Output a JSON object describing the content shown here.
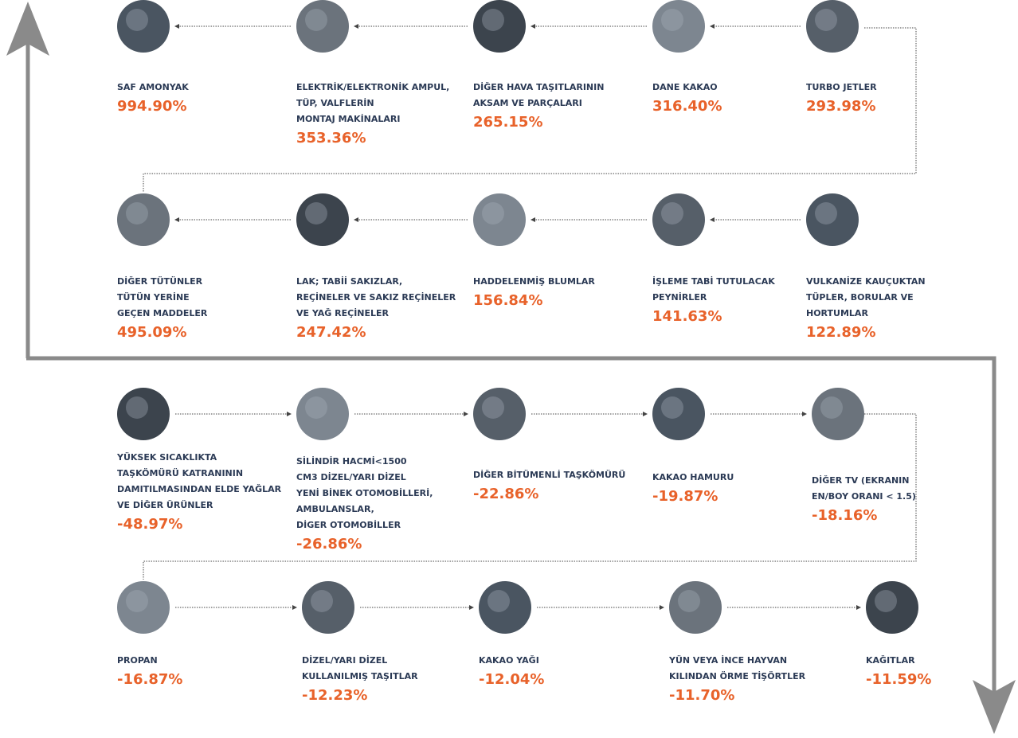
{
  "rows": [
    [
      {
        "label": [
          "SAF AMONYAK"
        ],
        "value": "994.90%"
      },
      {
        "label": [
          "ELEKTRİK/ELEKTRONİK AMPUL,",
          "TÜP, VALFLERİN",
          "MONTAJ MAKİNALARI"
        ],
        "value": "353.36%"
      },
      {
        "label": [
          "DİĞER HAVA TAŞITLARININ",
          "AKSAM VE PARÇALARI"
        ],
        "value": "265.15%"
      },
      {
        "label": [
          "DANE KAKAO"
        ],
        "value": "316.40%"
      },
      {
        "label": [
          "TURBO JETLER"
        ],
        "value": "293.98%"
      }
    ],
    [
      {
        "label": [
          "DİĞER TÜTÜNLER",
          "TÜTÜN YERİNE",
          "GEÇEN MADDELER"
        ],
        "value": "495.09%"
      },
      {
        "label": [
          "LAK; TABİİ SAKIZLAR,",
          "REÇİNELER VE SAKIZ REÇİNELER",
          "VE YAĞ REÇİNELER"
        ],
        "value": "247.42%"
      },
      {
        "label": [
          "HADDELENMİŞ BLUMLAR"
        ],
        "value": "156.84%"
      },
      {
        "label": [
          "İŞLEME TABİ TUTULACAK",
          "PEYNİRLER"
        ],
        "value": "141.63%"
      },
      {
        "label": [
          "VULKANİZE KAUÇUKTAN",
          "TÜPLER, BORULAR VE",
          "HORTUMLAR"
        ],
        "value": "122.89%"
      }
    ],
    [
      {
        "label": [
          "YÜKSEK SICAKLIKTA",
          "TAŞKÖMÜRÜ KATRANININ",
          "DAMITILMASINDAN ELDE YAĞLAR",
          "VE DİĞER ÜRÜNLER"
        ],
        "value": "-48.97%"
      },
      {
        "label": [
          "SİLİNDİR HACMİ<1500",
          "CM3 DİZEL/YARI DİZEL",
          "YENİ BİNEK OTOMOBİLLERİ,",
          " AMBULANSLAR,",
          "DİGER OTOMOBİLLER"
        ],
        "value": "-26.86%"
      },
      {
        "label": [
          "DİĞER BİTÜMENLİ TAŞKÖMÜRÜ"
        ],
        "value": "-22.86%"
      },
      {
        "label": [
          "KAKAO HAMURU"
        ],
        "value": "-19.87%"
      },
      {
        "label": [
          "DİĞER TV (EKRANIN",
          "EN/BOY ORANI < 1.5)"
        ],
        "value": "-18.16%"
      }
    ],
    [
      {
        "label": [
          "PROPAN"
        ],
        "value": "-16.87%"
      },
      {
        "label": [
          "DİZEL/YARI DİZEL",
          "KULLANILMIŞ TAŞITLAR"
        ],
        "value": "-12.23%"
      },
      {
        "label": [
          "KAKAO YAĞI"
        ],
        "value": "-12.04%"
      },
      {
        "label": [
          "YÜN VEYA İNCE HAYVAN",
          "KILINDAN ÖRME TİŞÖRTLER"
        ],
        "value": "-11.70%"
      },
      {
        "label": [
          "KAĞITLAR"
        ],
        "value": "-11.59%"
      }
    ]
  ]
}
